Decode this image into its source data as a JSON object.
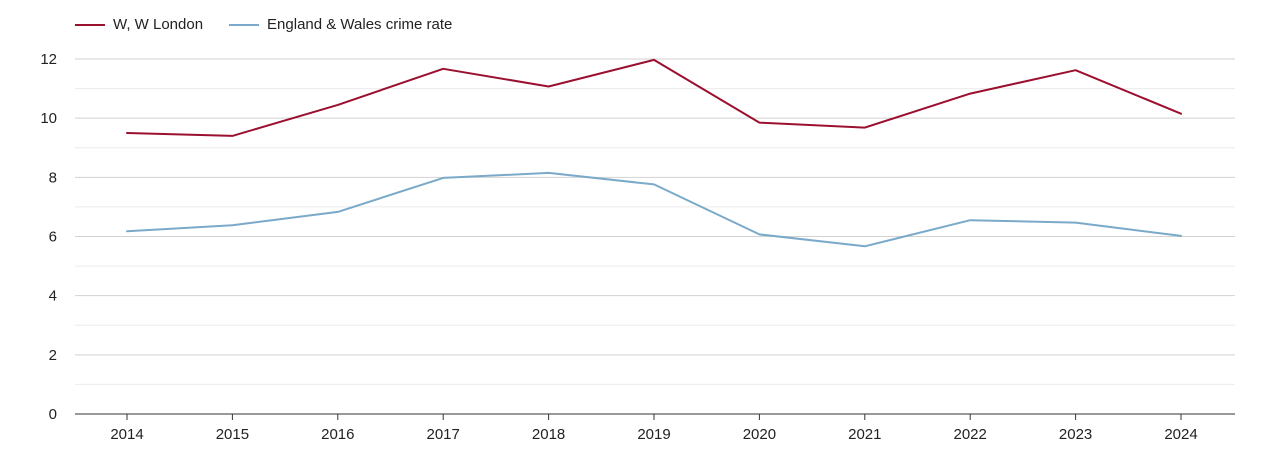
{
  "chart_data": {
    "type": "line",
    "title": "",
    "xlabel": "",
    "ylabel": "",
    "categories": [
      "2014",
      "2015",
      "2016",
      "2017",
      "2018",
      "2019",
      "2020",
      "2021",
      "2022",
      "2023",
      "2024"
    ],
    "ylim": [
      0,
      12
    ],
    "yticks": [
      0,
      2,
      4,
      6,
      8,
      10,
      12
    ],
    "grid": true,
    "legend_position": "top-left",
    "series": [
      {
        "name": "W, W London",
        "color": "#9b0f2f",
        "values": [
          9.5,
          9.4,
          10.45,
          11.67,
          11.07,
          11.97,
          9.85,
          9.68,
          10.83,
          11.62,
          10.15
        ]
      },
      {
        "name": "England & Wales crime rate",
        "color": "#7aa9c9",
        "values": [
          6.18,
          6.38,
          6.83,
          7.98,
          8.15,
          7.76,
          6.07,
          5.67,
          6.55,
          6.47,
          6.02
        ]
      }
    ]
  }
}
